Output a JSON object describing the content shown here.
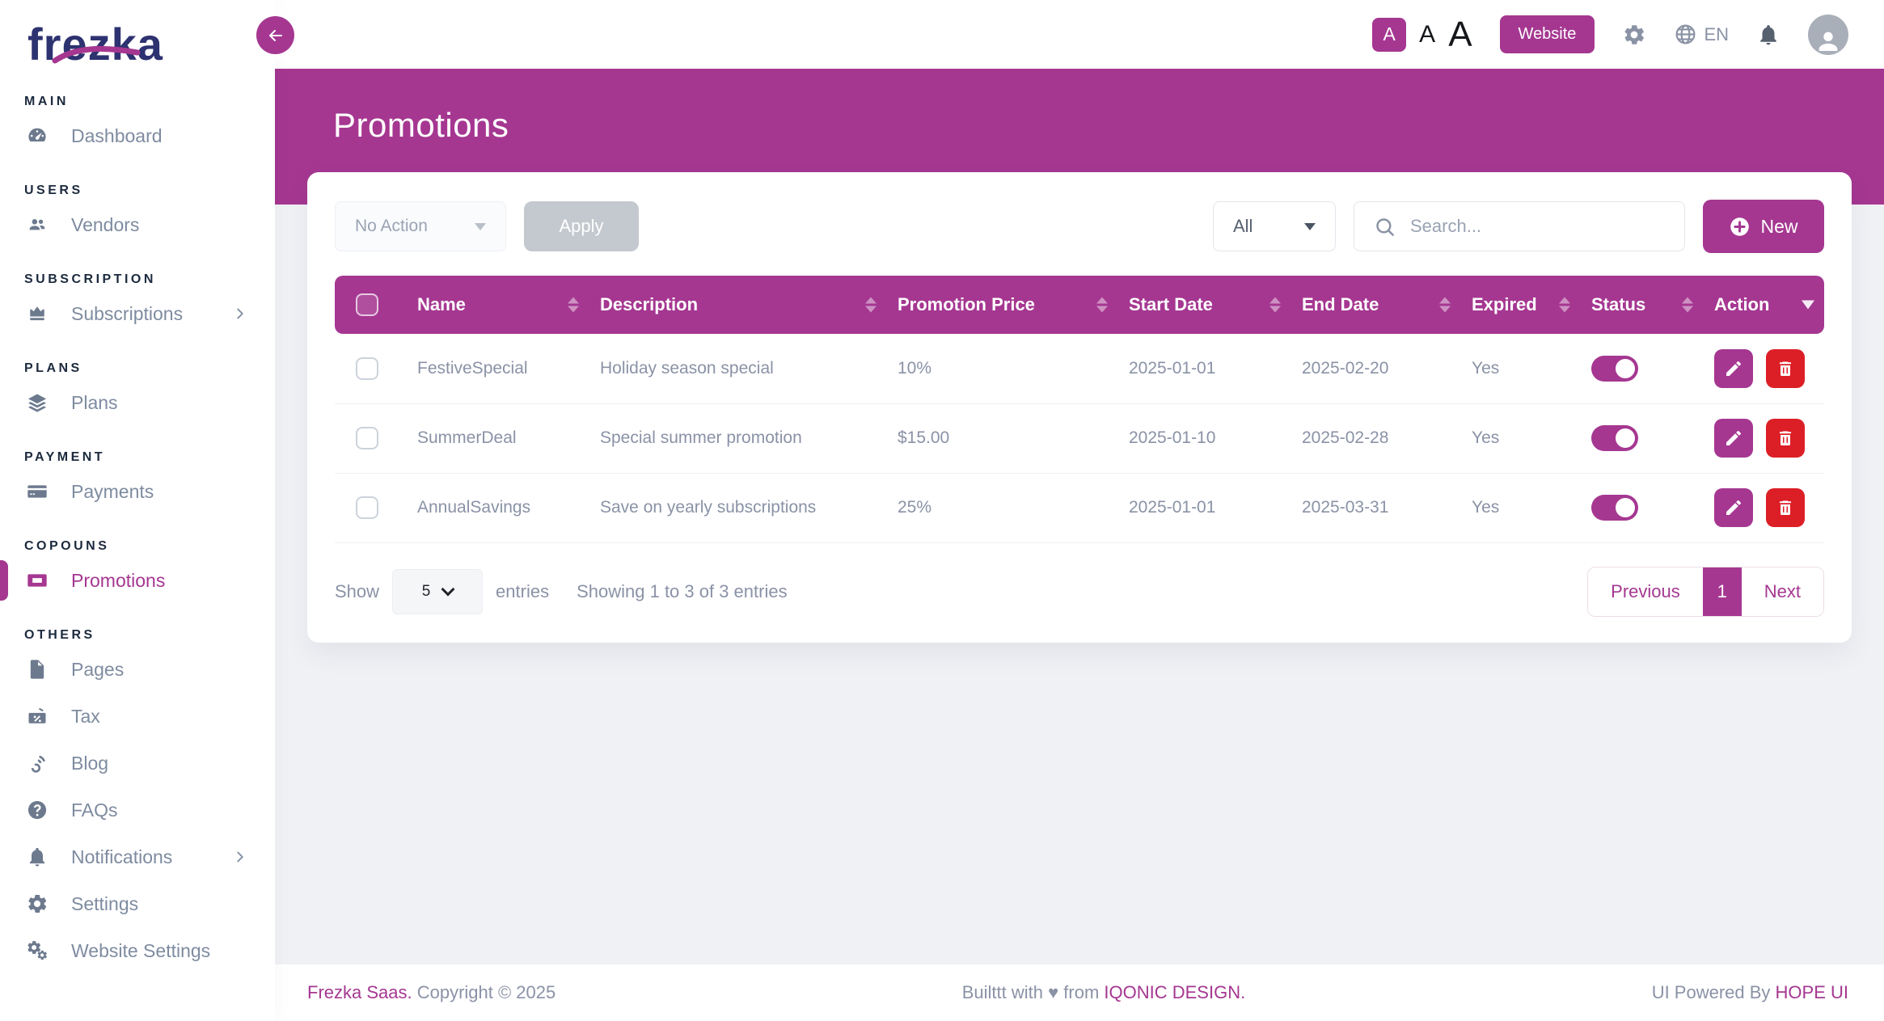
{
  "brand": {
    "name": "frezka"
  },
  "colors": {
    "primary": "#A53791",
    "danger": "#DC1F26",
    "text": "#8A92A6",
    "logo": "#2D3270"
  },
  "sidebar": {
    "sections": [
      {
        "label": "MAIN",
        "items": [
          {
            "label": "Dashboard",
            "icon": "dashboard-icon"
          }
        ]
      },
      {
        "label": "USERS",
        "items": [
          {
            "label": "Vendors",
            "icon": "users-icon"
          }
        ]
      },
      {
        "label": "SUBSCRIPTION",
        "items": [
          {
            "label": "Subscriptions",
            "icon": "crown-icon",
            "chevron": true
          }
        ]
      },
      {
        "label": "PLANS",
        "items": [
          {
            "label": "Plans",
            "icon": "layers-icon"
          }
        ]
      },
      {
        "label": "PAYMENT",
        "items": [
          {
            "label": "Payments",
            "icon": "credit-card-icon"
          }
        ]
      },
      {
        "label": "COPOUNS",
        "items": [
          {
            "label": "Promotions",
            "icon": "ticket-icon",
            "active": true
          }
        ]
      },
      {
        "label": "OTHERS",
        "items": [
          {
            "label": "Pages",
            "icon": "file-icon"
          },
          {
            "label": "Tax",
            "icon": "tax-icon"
          },
          {
            "label": "Blog",
            "icon": "blog-icon"
          },
          {
            "label": "FAQs",
            "icon": "question-icon"
          },
          {
            "label": "Notifications",
            "icon": "bell-icon",
            "chevron": true
          },
          {
            "label": "Settings",
            "icon": "gear-icon"
          },
          {
            "label": "Website Settings",
            "icon": "gears-icon"
          }
        ]
      }
    ]
  },
  "header": {
    "font_buttons": [
      "A",
      "A",
      "A"
    ],
    "website_button": "Website",
    "language": "EN"
  },
  "page": {
    "title": "Promotions"
  },
  "toolbar": {
    "bulk_action_value": "No Action",
    "apply_label": "Apply",
    "filter_value": "All",
    "search_placeholder": "Search...",
    "new_label": "New"
  },
  "table": {
    "columns": [
      "Name",
      "Description",
      "Promotion Price",
      "Start Date",
      "End Date",
      "Expired",
      "Status",
      "Action"
    ],
    "rows": [
      {
        "name": "FestiveSpecial",
        "description": "Holiday season special",
        "price": "10%",
        "start": "2025-01-01",
        "end": "2025-02-20",
        "expired": "Yes",
        "status_on": true
      },
      {
        "name": "SummerDeal",
        "description": "Special summer promotion",
        "price": "$15.00",
        "start": "2025-01-10",
        "end": "2025-02-28",
        "expired": "Yes",
        "status_on": true
      },
      {
        "name": "AnnualSavings",
        "description": "Save on yearly subscriptions",
        "price": "25%",
        "start": "2025-01-01",
        "end": "2025-03-31",
        "expired": "Yes",
        "status_on": true
      }
    ]
  },
  "table_footer": {
    "show_label": "Show",
    "page_size": "5",
    "entries_label": "entries",
    "showing_text": "Showing 1 to 3 of 3 entries",
    "previous_label": "Previous",
    "current_page": "1",
    "next_label": "Next"
  },
  "footer": {
    "left_brand": "Frezka Saas.",
    "left_rest": " Copyright © 2025",
    "center_prefix": "Builttt with ♥ from ",
    "center_link": "IQONIC DESIGN.",
    "right_prefix": "UI Powered By ",
    "right_link": "HOPE UI"
  }
}
